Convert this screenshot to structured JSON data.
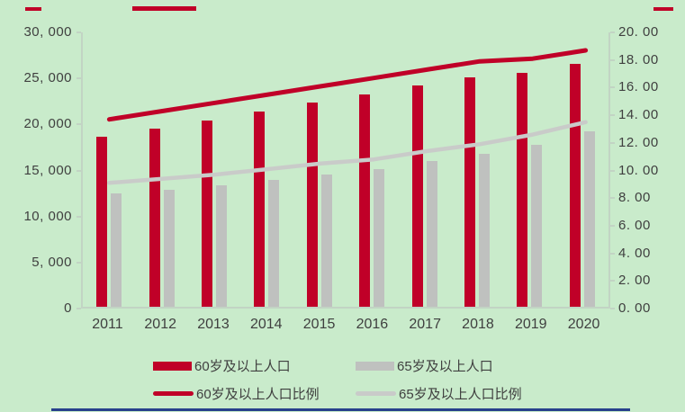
{
  "colors": {
    "background": "#c9ebcb",
    "bar_60_plus": "#c00028",
    "bar_65_plus": "#bfc1bf",
    "line_60_plus_ratio": "#c00028",
    "line_65_plus_ratio": "#c9cbc9",
    "axis": "#c2d4c4",
    "text": "#3f3f3f",
    "top_dashes": "#c00028",
    "bottom_rule": "#27408b"
  },
  "chart_data": {
    "type": "bar",
    "subtype": "combo bar+line, dual axis",
    "title": "",
    "xlabel": "",
    "ylabel_left": "",
    "ylabel_right": "",
    "grid": false,
    "legend_position": "bottom",
    "categories": [
      "2011",
      "2012",
      "2013",
      "2014",
      "2015",
      "2016",
      "2017",
      "2018",
      "2019",
      "2020"
    ],
    "series": [
      {
        "name": "60岁及以上人口",
        "type": "bar",
        "axis": "left",
        "color": "#c00028",
        "values": [
          18499,
          19390,
          20243,
          21242,
          22200,
          23086,
          24090,
          24949,
          25388,
          26402
        ]
      },
      {
        "name": "65岁及以上人口",
        "type": "bar",
        "axis": "left",
        "color": "#bfc1bf",
        "values": [
          12288,
          12714,
          13161,
          13755,
          14386,
          15003,
          15831,
          16658,
          17603,
          19064
        ]
      },
      {
        "name": "60岁及以上人口比例",
        "type": "line",
        "axis": "right",
        "color": "#c00028",
        "values": [
          13.7,
          14.3,
          14.9,
          15.5,
          16.1,
          16.7,
          17.3,
          17.9,
          18.1,
          18.7
        ]
      },
      {
        "name": "65岁及以上人口比例",
        "type": "line",
        "axis": "right",
        "color": "#c9cbc9",
        "values": [
          9.1,
          9.4,
          9.7,
          10.1,
          10.5,
          10.8,
          11.4,
          11.9,
          12.6,
          13.5
        ]
      }
    ],
    "left_axis": {
      "min": 0,
      "max": 30000,
      "step": 5000,
      "ticks": [
        "30, 000",
        "25, 000",
        "20, 000",
        "15, 000",
        "10, 000",
        "5, 000",
        "0"
      ]
    },
    "right_axis": {
      "min": 0,
      "max": 20,
      "step": 2,
      "ticks": [
        "20. 00",
        "18. 00",
        "16. 00",
        "14. 00",
        "12. 00",
        "10. 00",
        "8. 00",
        "6. 00",
        "4. 00",
        "2. 00",
        "0. 00"
      ]
    }
  },
  "legend": {
    "items": [
      {
        "label": "60岁及以上人口",
        "swatch": "bar",
        "color": "#c00028"
      },
      {
        "label": "65岁及以上人口",
        "swatch": "bar",
        "color": "#bfc1bf"
      },
      {
        "label": "60岁及以上人口比例",
        "swatch": "line",
        "color": "#c00028"
      },
      {
        "label": "65岁及以上人口比例",
        "swatch": "line",
        "color": "#c9cbc9"
      }
    ]
  }
}
